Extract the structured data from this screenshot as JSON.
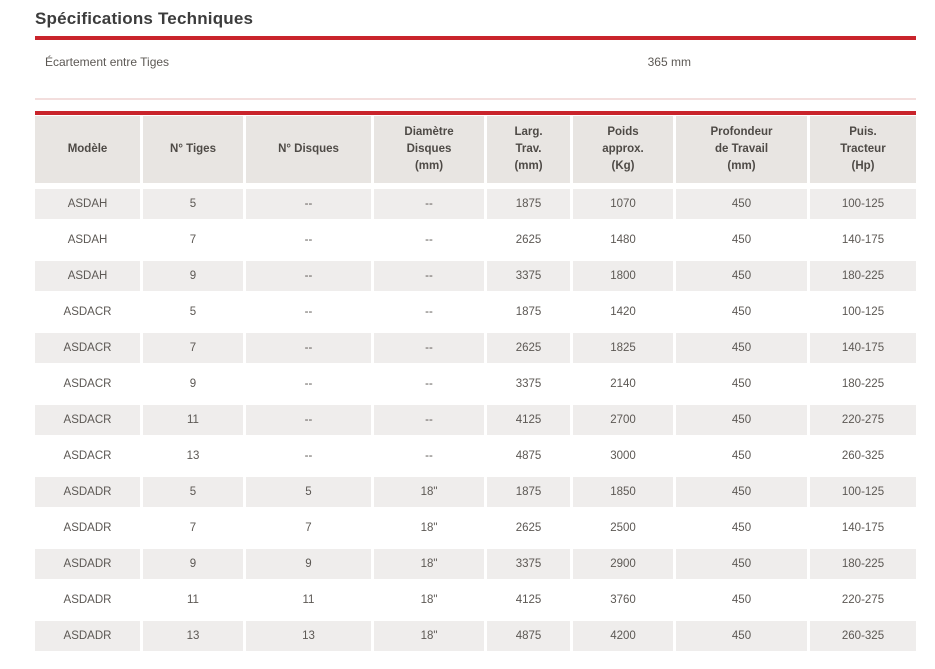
{
  "page": {
    "title": "Spécifications Techniques"
  },
  "colors": {
    "accent_red": "#c9242b",
    "header_bg": "#e8e5e2",
    "row_alt_bg": "#efedec",
    "body_text": "#5c5854"
  },
  "spacing": {
    "label": "Écartement entre Tiges",
    "value": "365 mm"
  },
  "table": {
    "columns": [
      {
        "label": "Modèle"
      },
      {
        "label": "N° Tiges"
      },
      {
        "label": "N° Disques"
      },
      {
        "label": "Diamètre\nDisques\n(mm)"
      },
      {
        "label": "Larg.\nTrav.\n(mm)"
      },
      {
        "label": "Poids\napprox.\n(Kg)"
      },
      {
        "label": "Profondeur\nde Travail\n(mm)"
      },
      {
        "label": "Puis.\nTracteur\n(Hp)"
      }
    ],
    "rows": [
      [
        "ASDAH",
        "5",
        "--",
        "--",
        "1875",
        "1070",
        "450",
        "100-125"
      ],
      [
        "ASDAH",
        "7",
        "--",
        "--",
        "2625",
        "1480",
        "450",
        "140-175"
      ],
      [
        "ASDAH",
        "9",
        "--",
        "--",
        "3375",
        "1800",
        "450",
        "180-225"
      ],
      [
        "ASDACR",
        "5",
        "--",
        "--",
        "1875",
        "1420",
        "450",
        "100-125"
      ],
      [
        "ASDACR",
        "7",
        "--",
        "--",
        "2625",
        "1825",
        "450",
        "140-175"
      ],
      [
        "ASDACR",
        "9",
        "--",
        "--",
        "3375",
        "2140",
        "450",
        "180-225"
      ],
      [
        "ASDACR",
        "11",
        "--",
        "--",
        "4125",
        "2700",
        "450",
        "220-275"
      ],
      [
        "ASDACR",
        "13",
        "--",
        "--",
        "4875",
        "3000",
        "450",
        "260-325"
      ],
      [
        "ASDADR",
        "5",
        "5",
        "18\"",
        "1875",
        "1850",
        "450",
        "100-125"
      ],
      [
        "ASDADR",
        "7",
        "7",
        "18\"",
        "2625",
        "2500",
        "450",
        "140-175"
      ],
      [
        "ASDADR",
        "9",
        "9",
        "18\"",
        "3375",
        "2900",
        "450",
        "180-225"
      ],
      [
        "ASDADR",
        "11",
        "11",
        "18\"",
        "4125",
        "3760",
        "450",
        "220-275"
      ],
      [
        "ASDADR",
        "13",
        "13",
        "18\"",
        "4875",
        "4200",
        "450",
        "260-325"
      ]
    ]
  }
}
